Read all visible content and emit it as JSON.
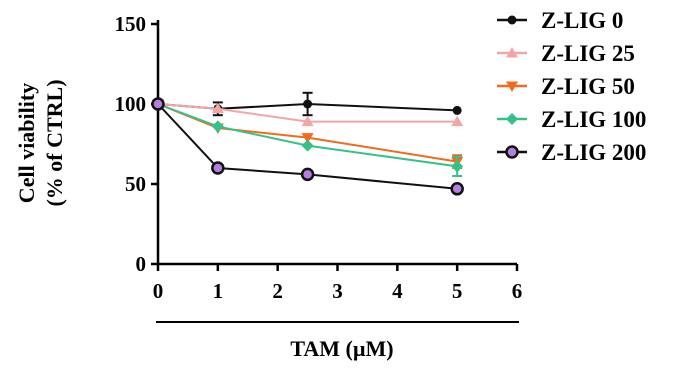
{
  "chart_data": {
    "type": "line",
    "xlabel": "TAM (µM)",
    "ylabel": [
      "Cell viability",
      "(% of CTRL)"
    ],
    "xlim": [
      0,
      6
    ],
    "ylim": [
      0,
      150
    ],
    "xticks": [
      "0",
      "1",
      "2",
      "3",
      "4",
      "5",
      "6"
    ],
    "yticks": [
      "0",
      "50",
      "100",
      "150"
    ],
    "x": [
      0,
      1,
      2.5,
      5
    ],
    "legend_position": "right",
    "series": [
      {
        "name": "Z-LIG 0",
        "values": [
          100,
          97,
          100,
          96
        ],
        "errors": [
          0,
          4,
          7,
          0
        ],
        "color": "#111111",
        "marker": "circle"
      },
      {
        "name": "Z-LIG 25",
        "values": [
          100,
          97,
          89,
          89
        ],
        "errors": [
          0,
          0,
          0,
          0
        ],
        "color": "#f4a6a6",
        "marker": "triangle-up"
      },
      {
        "name": "Z-LIG 50",
        "values": [
          100,
          85,
          79,
          64
        ],
        "errors": [
          0,
          0,
          0,
          4
        ],
        "color": "#f26b1d",
        "marker": "triangle-down"
      },
      {
        "name": "Z-LIG 100",
        "values": [
          100,
          86,
          74,
          61
        ],
        "errors": [
          0,
          0,
          0,
          6
        ],
        "color": "#35c28a",
        "marker": "diamond"
      },
      {
        "name": "Z-LIG 200",
        "values": [
          100,
          60,
          56,
          47
        ],
        "errors": [
          0,
          0,
          0,
          0
        ],
        "color": "#111111",
        "marker": "circle-open",
        "fill": "#b57fe0"
      }
    ]
  }
}
